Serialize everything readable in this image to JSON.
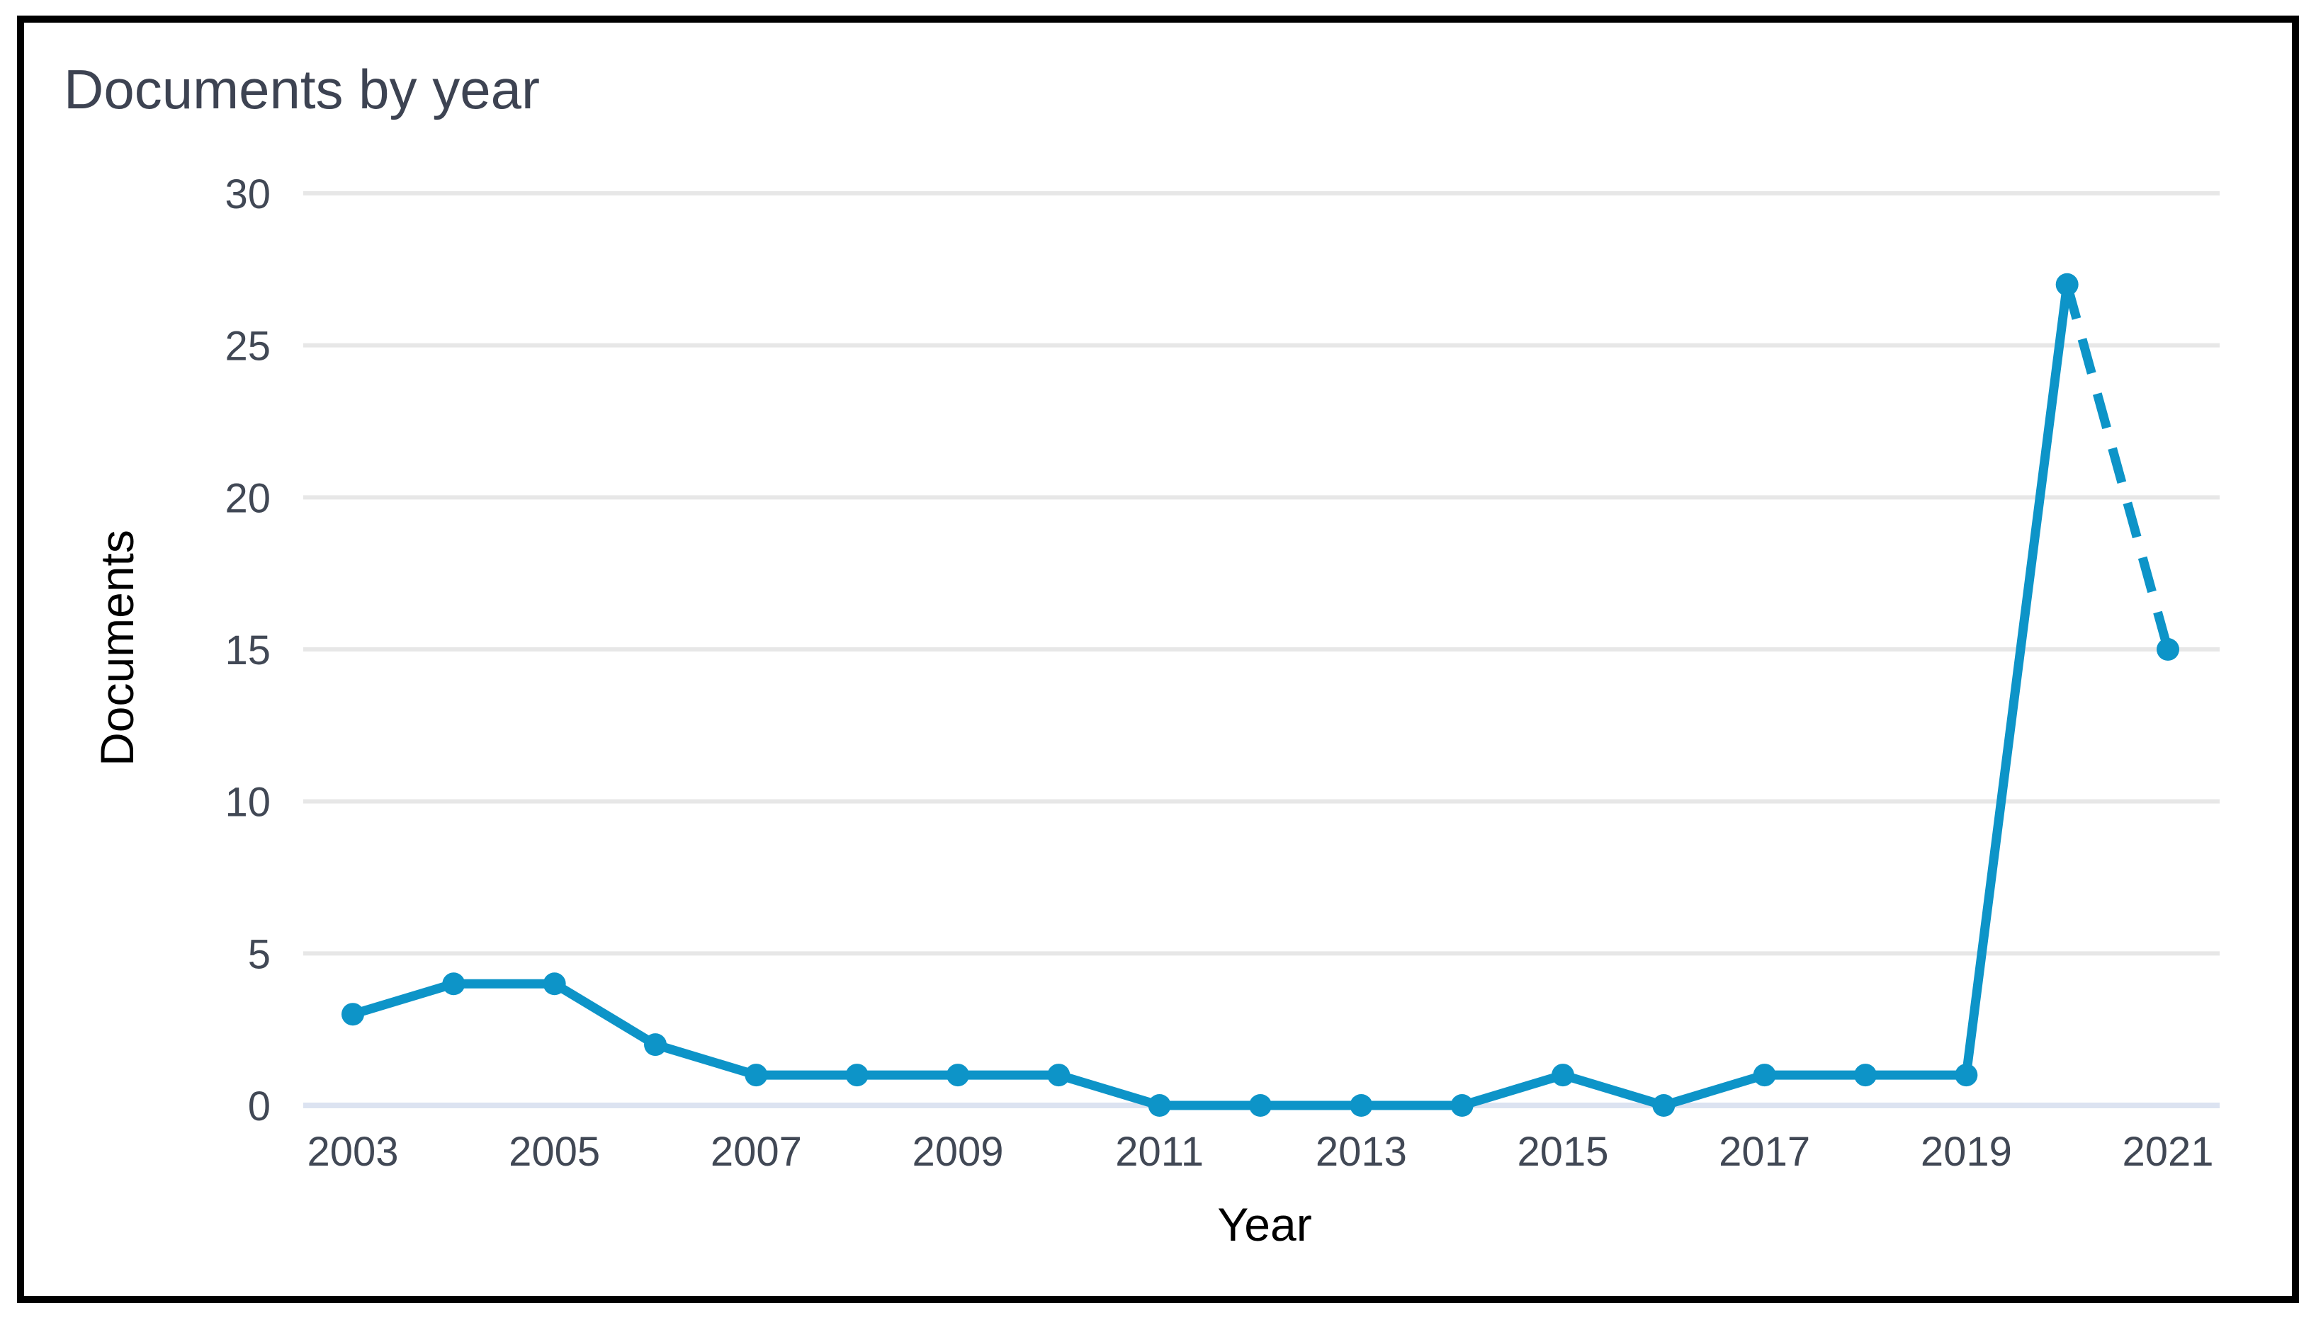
{
  "window": {
    "background": "#ffffff",
    "frame_border_color": "#000000"
  },
  "chart_data": {
    "type": "line",
    "title": "Documents by year",
    "xlabel": "Year",
    "ylabel": "Documents",
    "x": [
      2003,
      2004,
      2005,
      2006,
      2007,
      2008,
      2009,
      2010,
      2011,
      2012,
      2013,
      2014,
      2015,
      2016,
      2017,
      2018,
      2019,
      2020,
      2021
    ],
    "series": [
      {
        "name": "Documents",
        "values": [
          3,
          4,
          4,
          2,
          1,
          1,
          1,
          1,
          0,
          0,
          0,
          0,
          1,
          0,
          1,
          1,
          1,
          27,
          15
        ]
      }
    ],
    "line_style": {
      "solid_range": [
        2003,
        2020
      ],
      "dashed_range": [
        2020,
        2021
      ]
    },
    "ylim": [
      0,
      30
    ],
    "y_ticks": [
      0,
      5,
      10,
      15,
      20,
      25,
      30
    ],
    "x_ticks_labeled": [
      2003,
      2005,
      2007,
      2009,
      2011,
      2013,
      2015,
      2017,
      2019,
      2021
    ],
    "grid": "horizontal",
    "legend": "none",
    "markers": "filled-circle"
  },
  "colors": {
    "line": "#0d94c8",
    "marker": "#0d94c8",
    "grid": "#e7e7e7",
    "zero_line": "#dce3f1",
    "title_text": "#3d4352",
    "axis_label_text": "#3d4352",
    "tick_text": "#414855"
  }
}
